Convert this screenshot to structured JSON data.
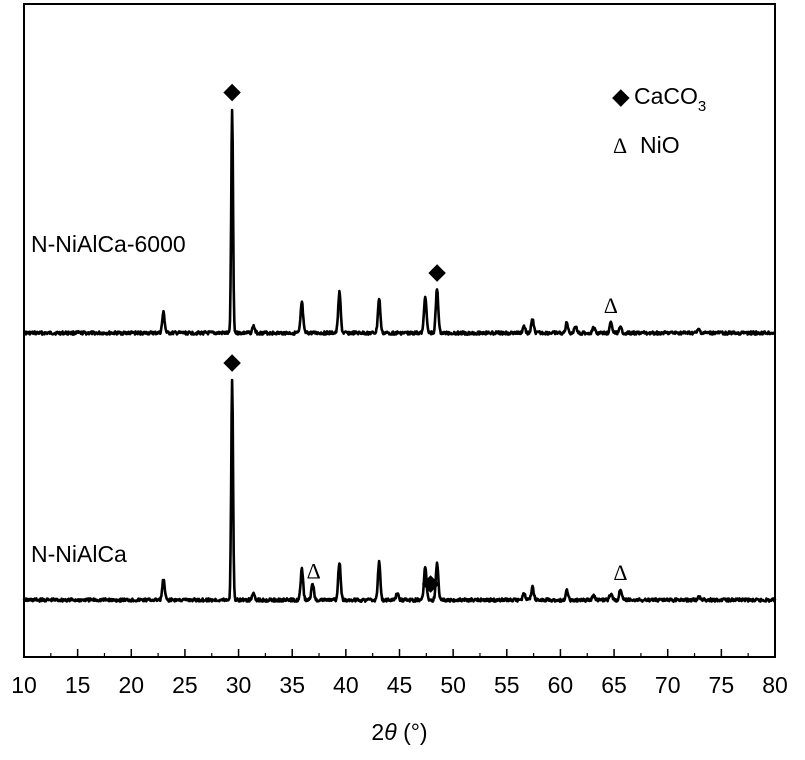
{
  "chart_data": {
    "type": "line",
    "title": "",
    "xlabel_prefix": "2",
    "xlabel_theta": "θ",
    "xlabel_unit": " (°)",
    "ylabel": "",
    "xlim": [
      10,
      80
    ],
    "x_ticks": [
      10,
      15,
      20,
      25,
      30,
      35,
      40,
      45,
      50,
      55,
      60,
      65,
      70,
      75,
      80
    ],
    "grid": false,
    "legend": {
      "placement": "top-right",
      "entries": [
        {
          "symbol": "◆",
          "text": "CaCO",
          "subscript": "3"
        },
        {
          "symbol": "Δ",
          "text": "NiO"
        }
      ]
    },
    "series": [
      {
        "name": "N-NiAlCa-6000",
        "baseline": 1.0,
        "peaks": [
          {
            "x": 23.0,
            "h": 0.06
          },
          {
            "x": 29.4,
            "h": 0.66
          },
          {
            "x": 31.4,
            "h": 0.02
          },
          {
            "x": 35.9,
            "h": 0.09
          },
          {
            "x": 39.4,
            "h": 0.12
          },
          {
            "x": 43.1,
            "h": 0.1
          },
          {
            "x": 47.4,
            "h": 0.11
          },
          {
            "x": 48.5,
            "h": 0.13
          },
          {
            "x": 56.6,
            "h": 0.02
          },
          {
            "x": 57.4,
            "h": 0.04
          },
          {
            "x": 60.6,
            "h": 0.03
          },
          {
            "x": 61.4,
            "h": 0.02
          },
          {
            "x": 63.1,
            "h": 0.015
          },
          {
            "x": 64.7,
            "h": 0.03
          },
          {
            "x": 65.6,
            "h": 0.015
          },
          {
            "x": 72.9,
            "h": 0.01
          }
        ],
        "annotations": [
          {
            "x": 29.4,
            "symbol": "◆"
          },
          {
            "x": 48.5,
            "symbol": "◆"
          },
          {
            "x": 64.7,
            "symbol": "Δ"
          }
        ]
      },
      {
        "name": "N-NiAlCa",
        "baseline": 0.0,
        "peaks": [
          {
            "x": 23.0,
            "h": 0.06
          },
          {
            "x": 29.4,
            "h": 0.65
          },
          {
            "x": 31.4,
            "h": 0.02
          },
          {
            "x": 35.9,
            "h": 0.09
          },
          {
            "x": 36.9,
            "h": 0.05
          },
          {
            "x": 39.4,
            "h": 0.11
          },
          {
            "x": 43.1,
            "h": 0.11
          },
          {
            "x": 44.8,
            "h": 0.02
          },
          {
            "x": 47.4,
            "h": 0.1
          },
          {
            "x": 48.5,
            "h": 0.11
          },
          {
            "x": 56.6,
            "h": 0.02
          },
          {
            "x": 57.4,
            "h": 0.04
          },
          {
            "x": 60.6,
            "h": 0.03
          },
          {
            "x": 63.1,
            "h": 0.015
          },
          {
            "x": 64.7,
            "h": 0.02
          },
          {
            "x": 65.6,
            "h": 0.03
          },
          {
            "x": 72.9,
            "h": 0.01
          }
        ],
        "annotations": [
          {
            "x": 29.4,
            "symbol": "◆"
          },
          {
            "x": 37.0,
            "symbol": "Δ"
          },
          {
            "x": 47.9,
            "symbol": "◆"
          },
          {
            "x": 65.6,
            "symbol": "Δ"
          }
        ]
      }
    ]
  }
}
